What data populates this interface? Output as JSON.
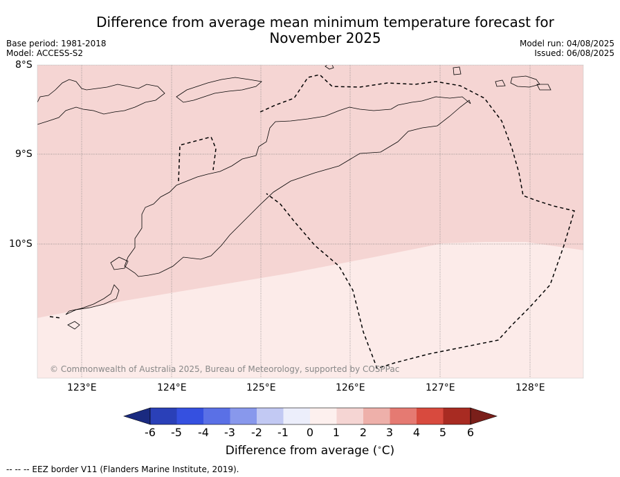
{
  "title_line1": "Difference from average mean minimum temperature forecast for",
  "title_line2": "November 2025",
  "base_period": "Base period: 1981-2018",
  "model": "Model: ACCESS-S2",
  "model_run": "Model run: 04/08/2025",
  "issued": "Issued: 06/08/2025",
  "lat_labels": [
    "8°S",
    "9°S",
    "10°S"
  ],
  "lon_labels": [
    "123°E",
    "124°E",
    "125°E",
    "126°E",
    "127°E",
    "128°E"
  ],
  "copyright": "© Commonwealth of Australia 2025, Bureau of Meteorology, supported by COSPPac",
  "colorbar": {
    "ticks": [
      "-6",
      "-5",
      "-4",
      "-3",
      "-2",
      "-1",
      "0",
      "1",
      "2",
      "3",
      "4",
      "5",
      "6"
    ],
    "title": "Difference from average ($^\\circ$C)",
    "colors": [
      "#1a2a80",
      "#2a40b8",
      "#3550e0",
      "#5a70e6",
      "#8898ec",
      "#c2c9f3",
      "#eceefb",
      "#fdf0ee",
      "#f5d5d3",
      "#eeb0aa",
      "#e57a72",
      "#d84a3e",
      "#a82b22",
      "#7a1f1a"
    ]
  },
  "shading": {
    "north_class": "1 to 2",
    "north_color": "#f5d5d3",
    "south_class": "0 to 1",
    "south_color": "#fcebe9"
  },
  "footer": "--  --  -- EEZ border V11 (Flanders Marine Institute, 2019)."
}
